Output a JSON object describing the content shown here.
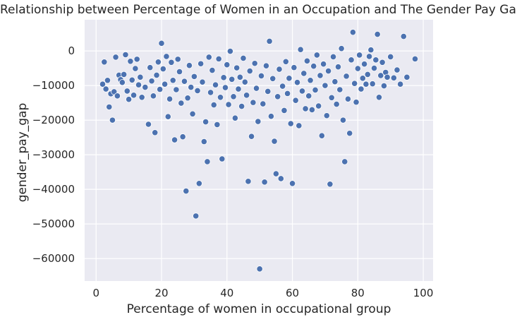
{
  "chart_data": {
    "type": "scatter",
    "title": "Relationship between Percentage of Women in an Occupation and The Gender Pay Gap",
    "xlabel": "Percentage of women in occupational group",
    "ylabel": "gender_pay_gap",
    "xlim": [
      -3.5,
      103
    ],
    "ylim": [
      -66500,
      9000
    ],
    "xticks": [
      0,
      20,
      40,
      60,
      80,
      100
    ],
    "yticks": [
      -60000,
      -50000,
      -40000,
      -30000,
      -20000,
      -10000,
      0
    ],
    "xtick_labels": [
      "0",
      "20",
      "40",
      "60",
      "80",
      "100"
    ],
    "ytick_labels": [
      "−60000",
      "−50000",
      "−40000",
      "−30000",
      "−20000",
      "−10000",
      "0"
    ],
    "grid": true,
    "legend": "none",
    "colors": {
      "background": "#EAEAF2",
      "grid": "#FFFFFF",
      "marker": "#4C72B0",
      "marker_edge": "#FFFFFF"
    },
    "points": [
      [
        2.0,
        -9600
      ],
      [
        2.5,
        -3200
      ],
      [
        3.0,
        -11000
      ],
      [
        3.5,
        -8500
      ],
      [
        4.0,
        -16200
      ],
      [
        4.5,
        -12400
      ],
      [
        5.0,
        -20000
      ],
      [
        5.5,
        -11800
      ],
      [
        6.0,
        -1800
      ],
      [
        6.5,
        -13000
      ],
      [
        7.0,
        -7000
      ],
      [
        7.5,
        -8300
      ],
      [
        8.0,
        -9100
      ],
      [
        8.5,
        -6800
      ],
      [
        9.0,
        -1100
      ],
      [
        9.5,
        -11600
      ],
      [
        10.0,
        -14000
      ],
      [
        10.5,
        -3000
      ],
      [
        11.0,
        -8400
      ],
      [
        11.5,
        -12800
      ],
      [
        12.0,
        -5100
      ],
      [
        12.5,
        -2400
      ],
      [
        13.0,
        -9800
      ],
      [
        13.5,
        -7600
      ],
      [
        14.0,
        -13400
      ],
      [
        15.0,
        -10500
      ],
      [
        16.0,
        -21200
      ],
      [
        16.5,
        -4800
      ],
      [
        17.0,
        -8700
      ],
      [
        17.5,
        -13000
      ],
      [
        18.0,
        -23600
      ],
      [
        18.5,
        -7000
      ],
      [
        19.0,
        -3200
      ],
      [
        19.5,
        -11100
      ],
      [
        20.0,
        2200
      ],
      [
        20.5,
        -5200
      ],
      [
        21.0,
        -9600
      ],
      [
        21.5,
        -1600
      ],
      [
        22.0,
        -19000
      ],
      [
        22.5,
        -13900
      ],
      [
        23.0,
        -3300
      ],
      [
        23.5,
        -8500
      ],
      [
        24.0,
        -25700
      ],
      [
        24.5,
        -11200
      ],
      [
        25.0,
        -2400
      ],
      [
        25.5,
        -6000
      ],
      [
        26.0,
        -15100
      ],
      [
        26.5,
        -24800
      ],
      [
        27.0,
        -8800
      ],
      [
        27.5,
        -40500
      ],
      [
        28.0,
        -13600
      ],
      [
        28.5,
        -4200
      ],
      [
        29.0,
        -10500
      ],
      [
        29.5,
        -18200
      ],
      [
        30.0,
        -7400
      ],
      [
        30.5,
        -47700
      ],
      [
        31.0,
        -11500
      ],
      [
        31.5,
        -38300
      ],
      [
        32.0,
        -3700
      ],
      [
        32.5,
        -9000
      ],
      [
        33.0,
        -26200
      ],
      [
        33.5,
        -20500
      ],
      [
        34.0,
        -32000
      ],
      [
        34.5,
        -1800
      ],
      [
        35.0,
        -12000
      ],
      [
        35.5,
        -5600
      ],
      [
        36.0,
        -15600
      ],
      [
        36.5,
        -9800
      ],
      [
        37.0,
        -21300
      ],
      [
        37.5,
        -2300
      ],
      [
        38.0,
        -13400
      ],
      [
        38.5,
        -31200
      ],
      [
        39.0,
        -7700
      ],
      [
        39.5,
        -10600
      ],
      [
        40.0,
        -4000
      ],
      [
        40.5,
        -15500
      ],
      [
        41.0,
        -100
      ],
      [
        41.5,
        -8200
      ],
      [
        42.0,
        -13200
      ],
      [
        42.5,
        -19400
      ],
      [
        43.0,
        -4900
      ],
      [
        43.5,
        -11000
      ],
      [
        44.0,
        -7600
      ],
      [
        44.5,
        -16000
      ],
      [
        45.0,
        -2100
      ],
      [
        45.5,
        -9000
      ],
      [
        46.0,
        -12800
      ],
      [
        46.5,
        -37700
      ],
      [
        47.0,
        -5800
      ],
      [
        47.5,
        -24700
      ],
      [
        48.0,
        -14900
      ],
      [
        48.5,
        -3600
      ],
      [
        49.0,
        -10800
      ],
      [
        49.5,
        -20400
      ],
      [
        50.0,
        -63000
      ],
      [
        50.5,
        -7200
      ],
      [
        51.0,
        -15300
      ],
      [
        51.5,
        -37900
      ],
      [
        52.0,
        -4300
      ],
      [
        52.5,
        -11700
      ],
      [
        53.0,
        2800
      ],
      [
        53.5,
        -18900
      ],
      [
        54.0,
        -8000
      ],
      [
        54.5,
        -26100
      ],
      [
        55.0,
        -35500
      ],
      [
        55.5,
        -13200
      ],
      [
        56.0,
        -5300
      ],
      [
        56.5,
        -36900
      ],
      [
        57.0,
        -10200
      ],
      [
        57.5,
        -17200
      ],
      [
        58.0,
        -3100
      ],
      [
        58.5,
        -12300
      ],
      [
        59.0,
        -7900
      ],
      [
        59.5,
        -21000
      ],
      [
        60.0,
        -38300
      ],
      [
        60.5,
        -4800
      ],
      [
        61.0,
        -14300
      ],
      [
        61.5,
        -9100
      ],
      [
        62.0,
        -21600
      ],
      [
        62.5,
        400
      ],
      [
        63.0,
        -11600
      ],
      [
        63.5,
        -6500
      ],
      [
        64.0,
        -16700
      ],
      [
        64.5,
        -2900
      ],
      [
        65.0,
        -13000
      ],
      [
        65.5,
        -8500
      ],
      [
        66.0,
        -17000
      ],
      [
        66.5,
        -4400
      ],
      [
        67.0,
        -11300
      ],
      [
        67.5,
        -1200
      ],
      [
        68.0,
        -15900
      ],
      [
        68.5,
        -7100
      ],
      [
        69.0,
        -24500
      ],
      [
        69.5,
        -3800
      ],
      [
        70.0,
        -10000
      ],
      [
        70.5,
        -18700
      ],
      [
        71.0,
        -5800
      ],
      [
        71.5,
        -38500
      ],
      [
        72.0,
        -13500
      ],
      [
        72.5,
        -1700
      ],
      [
        73.0,
        -8900
      ],
      [
        73.5,
        -15400
      ],
      [
        74.0,
        -4600
      ],
      [
        74.5,
        -11200
      ],
      [
        75.0,
        700
      ],
      [
        75.5,
        -20000
      ],
      [
        76.0,
        -32000
      ],
      [
        76.5,
        -7300
      ],
      [
        77.0,
        -13900
      ],
      [
        77.5,
        -23800
      ],
      [
        78.0,
        -2600
      ],
      [
        78.5,
        5400
      ],
      [
        79.0,
        -9400
      ],
      [
        79.5,
        -14800
      ],
      [
        80.0,
        -5100
      ],
      [
        80.5,
        -1200
      ],
      [
        81.0,
        -11000
      ],
      [
        81.5,
        -7900
      ],
      [
        82.0,
        -3800
      ],
      [
        82.5,
        -9600
      ],
      [
        83.0,
        -6800
      ],
      [
        83.5,
        -1600
      ],
      [
        84.0,
        300
      ],
      [
        84.5,
        -9500
      ],
      [
        85.0,
        -5000
      ],
      [
        85.5,
        -2600
      ],
      [
        86.0,
        4800
      ],
      [
        86.5,
        -13400
      ],
      [
        87.0,
        -7100
      ],
      [
        87.5,
        -3300
      ],
      [
        88.0,
        -10100
      ],
      [
        88.5,
        -6200
      ],
      [
        89.0,
        -7600
      ],
      [
        90.0,
        -1700
      ],
      [
        91.0,
        -7800
      ],
      [
        92.0,
        -5500
      ],
      [
        93.0,
        -9600
      ],
      [
        94.0,
        4200
      ],
      [
        95.0,
        -7600
      ],
      [
        97.5,
        -2300
      ]
    ]
  }
}
